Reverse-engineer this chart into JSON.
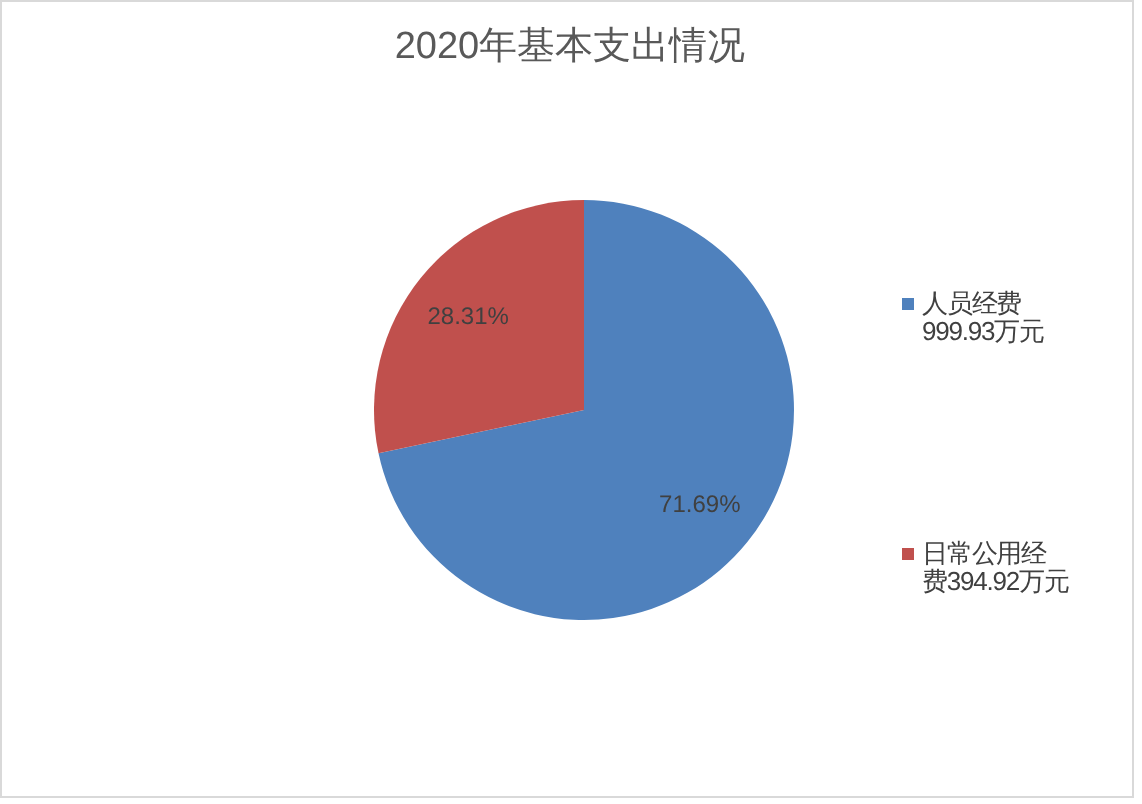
{
  "chart_data": {
    "type": "pie",
    "title": "2020年基本支出情况",
    "categories": [
      "人员经费999.93万元",
      "日常公用经费394.92万元"
    ],
    "values": [
      71.69,
      28.31
    ],
    "colors": [
      "#4f81bd",
      "#c0504d"
    ],
    "value_labels": [
      "71.69%",
      "28.31%"
    ],
    "legend": "right"
  }
}
